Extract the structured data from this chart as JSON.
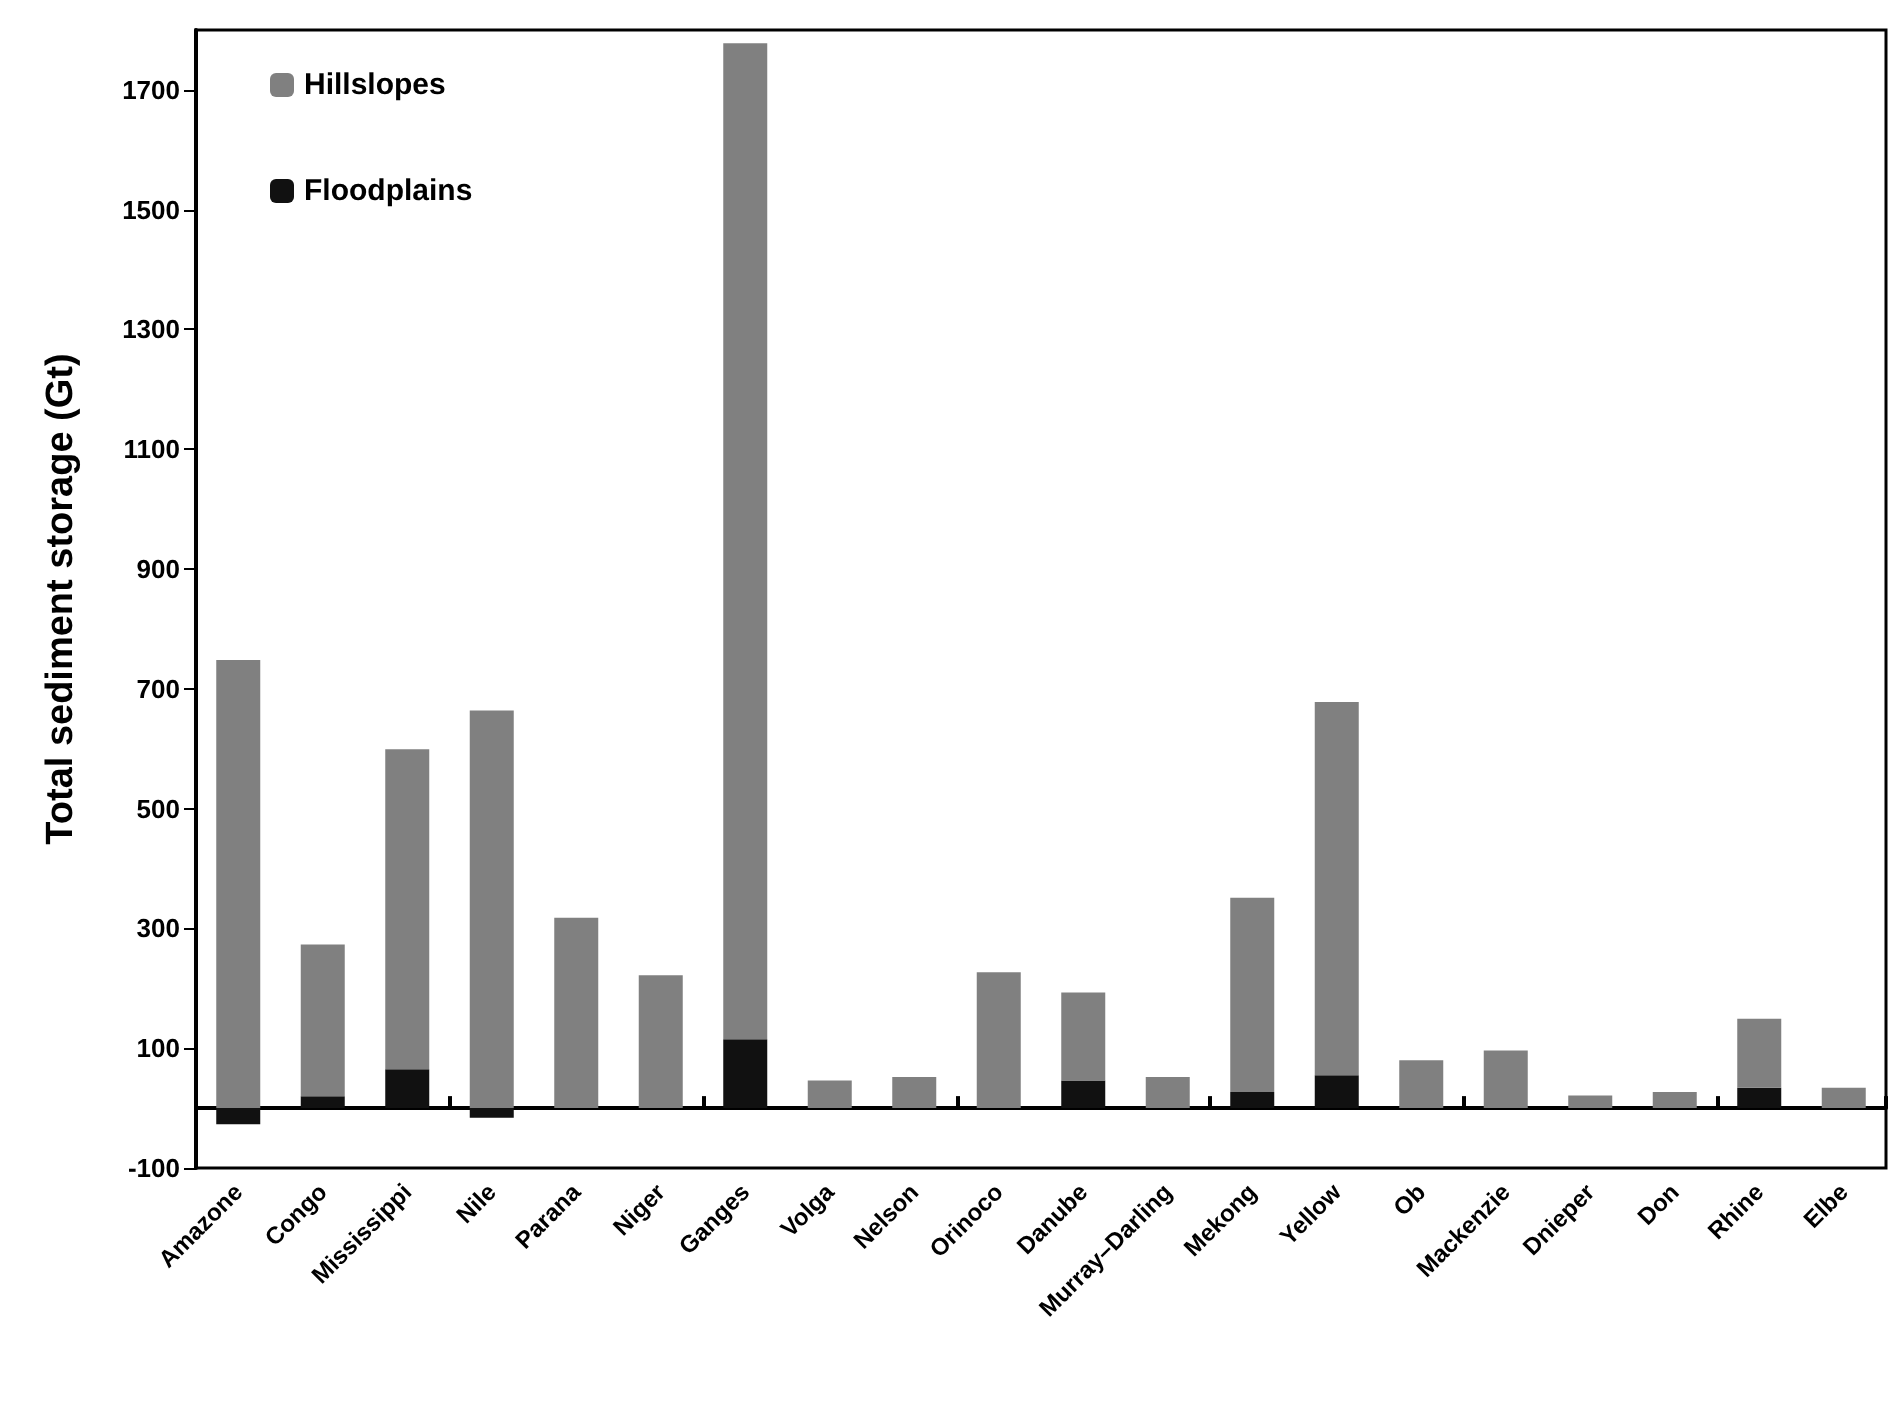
{
  "chart_data": {
    "type": "bar",
    "ylabel": "Total sediment storage (Gt)",
    "categories": [
      "Amazone",
      "Congo",
      "Mississippi",
      "Nile",
      "Parana",
      "Niger",
      "Ganges",
      "Volga",
      "Nelson",
      "Orinoco",
      "Danube",
      "Murray–Darling",
      "Mekong",
      "Yellow",
      "Ob",
      "Mackenzie",
      "Dnieper",
      "Don",
      "Rhine",
      "Elbe"
    ],
    "series": [
      {
        "name": "Floodplains",
        "color": "#111111",
        "values": [
          -27,
          20,
          65,
          -16,
          0,
          0,
          115,
          0,
          0,
          0,
          46,
          0,
          27,
          55,
          0,
          0,
          0,
          0,
          34,
          0
        ]
      },
      {
        "name": "Hillslopes",
        "color": "#808080",
        "values": [
          748,
          253,
          534,
          664,
          318,
          222,
          1663,
          46,
          52,
          227,
          147,
          52,
          324,
          623,
          80,
          96,
          21,
          27,
          115,
          34
        ]
      }
    ],
    "stacked": true,
    "ylim": [
      -100,
      1800
    ],
    "yticks": [
      -100,
      100,
      300,
      500,
      700,
      900,
      1100,
      1300,
      1500,
      1700
    ],
    "grid": false,
    "legend": "top left"
  }
}
